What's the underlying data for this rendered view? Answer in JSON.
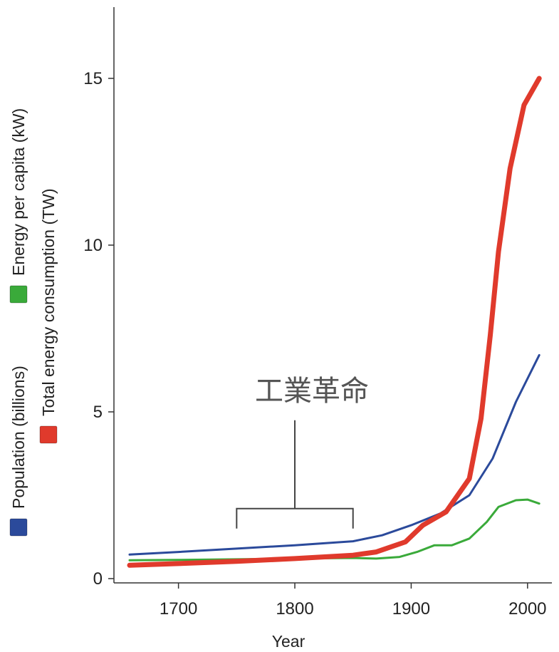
{
  "chart_data": {
    "type": "line",
    "xlabel": "Year",
    "ylabel": "",
    "xlim": [
      1645,
      2020
    ],
    "ylim": [
      0,
      17
    ],
    "x_ticks": [
      "1700",
      "1800",
      "1900",
      "2000"
    ],
    "y_ticks": [
      "0",
      "5",
      "10",
      "15"
    ],
    "grid": false,
    "legend_position": "left, rotated vertical",
    "series": [
      {
        "name": "Population (billions)",
        "color": "#2b4a9b",
        "points": [
          [
            1658,
            0.72
          ],
          [
            1700,
            0.8
          ],
          [
            1750,
            0.9
          ],
          [
            1800,
            1.0
          ],
          [
            1850,
            1.12
          ],
          [
            1875,
            1.3
          ],
          [
            1900,
            1.6
          ],
          [
            1925,
            1.95
          ],
          [
            1950,
            2.5
          ],
          [
            1970,
            3.6
          ],
          [
            1990,
            5.3
          ],
          [
            2010,
            6.7
          ]
        ]
      },
      {
        "name": "Energy per capita (kW)",
        "color": "#3aaa3a",
        "points": [
          [
            1658,
            0.55
          ],
          [
            1700,
            0.56
          ],
          [
            1750,
            0.58
          ],
          [
            1800,
            0.6
          ],
          [
            1850,
            0.62
          ],
          [
            1870,
            0.6
          ],
          [
            1890,
            0.65
          ],
          [
            1905,
            0.8
          ],
          [
            1920,
            1.0
          ],
          [
            1935,
            1.0
          ],
          [
            1950,
            1.2
          ],
          [
            1965,
            1.7
          ],
          [
            1975,
            2.15
          ],
          [
            1990,
            2.35
          ],
          [
            2000,
            2.37
          ],
          [
            2010,
            2.25
          ]
        ]
      },
      {
        "name": "Total energy consumption (TW)",
        "color": "#e03a2c",
        "points": [
          [
            1658,
            0.4
          ],
          [
            1700,
            0.45
          ],
          [
            1750,
            0.52
          ],
          [
            1800,
            0.6
          ],
          [
            1850,
            0.7
          ],
          [
            1870,
            0.8
          ],
          [
            1895,
            1.1
          ],
          [
            1910,
            1.6
          ],
          [
            1930,
            2.0
          ],
          [
            1950,
            3.0
          ],
          [
            1960,
            4.8
          ],
          [
            1968,
            7.3
          ],
          [
            1975,
            9.8
          ],
          [
            1985,
            12.3
          ],
          [
            1997,
            14.2
          ],
          [
            2010,
            15.0
          ]
        ]
      }
    ],
    "annotations": [
      {
        "text": "工業革命",
        "bracket_x": [
          1750,
          1850
        ],
        "bracket_y": 2.1,
        "stem_top_y": 4.75
      }
    ]
  }
}
